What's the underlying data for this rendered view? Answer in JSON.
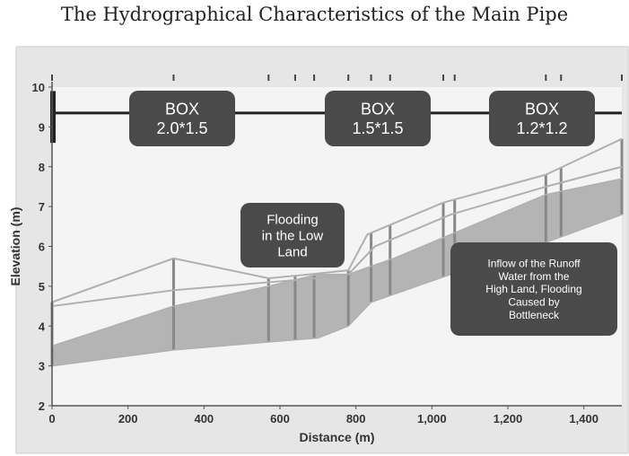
{
  "title": "The Hydrographical Characteristics of the Main Pipe",
  "chart_data": {
    "type": "area",
    "xlabel": "Distance (m)",
    "ylabel": "Elevation (m)",
    "xlim": [
      0,
      1500
    ],
    "ylim": [
      2,
      10
    ],
    "xticks": [
      0,
      200,
      400,
      600,
      800,
      1000,
      1200,
      1400
    ],
    "xtick_labels": [
      "0",
      "200",
      "400",
      "600",
      "800",
      "1,000",
      "1,200",
      "1,400"
    ],
    "yticks": [
      2,
      3,
      4,
      5,
      6,
      7,
      8,
      9,
      10
    ],
    "ytick_labels": [
      "2",
      "3",
      "4",
      "5",
      "6",
      "7",
      "8",
      "9",
      "10"
    ],
    "series": [
      {
        "values": [
          [
            0,
            4.6
          ],
          [
            320,
            5.7
          ],
          [
            570,
            5.2
          ],
          [
            680,
            5.3
          ],
          [
            780,
            5.4
          ],
          [
            830,
            6.3
          ],
          [
            1030,
            7.1
          ],
          [
            1300,
            7.8
          ],
          [
            1500,
            8.7
          ]
        ]
      },
      {
        "values": [
          [
            0,
            4.5
          ],
          [
            320,
            4.9
          ],
          [
            570,
            5.1
          ],
          [
            700,
            5.2
          ],
          [
            780,
            5.3
          ],
          [
            850,
            6.0
          ],
          [
            1050,
            6.8
          ],
          [
            1300,
            7.5
          ],
          [
            1500,
            8.0
          ]
        ]
      },
      {
        "values": [
          [
            0,
            3.5
          ],
          [
            320,
            4.5
          ],
          [
            570,
            5.0
          ],
          [
            700,
            5.3
          ],
          [
            780,
            5.3
          ],
          [
            900,
            5.7
          ],
          [
            1050,
            6.3
          ],
          [
            1300,
            7.3
          ],
          [
            1500,
            7.7
          ]
        ]
      },
      {
        "values": [
          [
            0,
            3.0
          ],
          [
            320,
            3.4
          ],
          [
            570,
            3.6
          ],
          [
            700,
            3.7
          ],
          [
            780,
            4.0
          ],
          [
            840,
            4.6
          ],
          [
            1050,
            5.3
          ],
          [
            1300,
            6.1
          ],
          [
            1500,
            6.8
          ]
        ]
      }
    ],
    "section_markers": [
      0,
      320,
      570,
      640,
      690,
      780,
      840,
      890,
      1030,
      1060,
      1300,
      1340,
      1500
    ],
    "annotations": [
      {
        "text": [
          "BOX",
          "2.0*1.5"
        ]
      },
      {
        "text": [
          "BOX",
          "1.5*1.5"
        ]
      },
      {
        "text": [
          "BOX",
          "1.2*1.2"
        ]
      },
      {
        "text": [
          "Flooding",
          "in the Low",
          "Land"
        ]
      },
      {
        "text": [
          "Inflow of the Runoff",
          "Water from the",
          "High Land, Flooding",
          "Caused by",
          "Bottleneck"
        ]
      }
    ],
    "colors": {
      "plot_bg": "#f4f4f4",
      "outer_bg": "#e6e6e6",
      "fill": "#b4b4b4",
      "line": "#b0b0b0",
      "label_box": "#4a4a4a",
      "marker": "#888888",
      "top_bar": "#222222"
    }
  }
}
